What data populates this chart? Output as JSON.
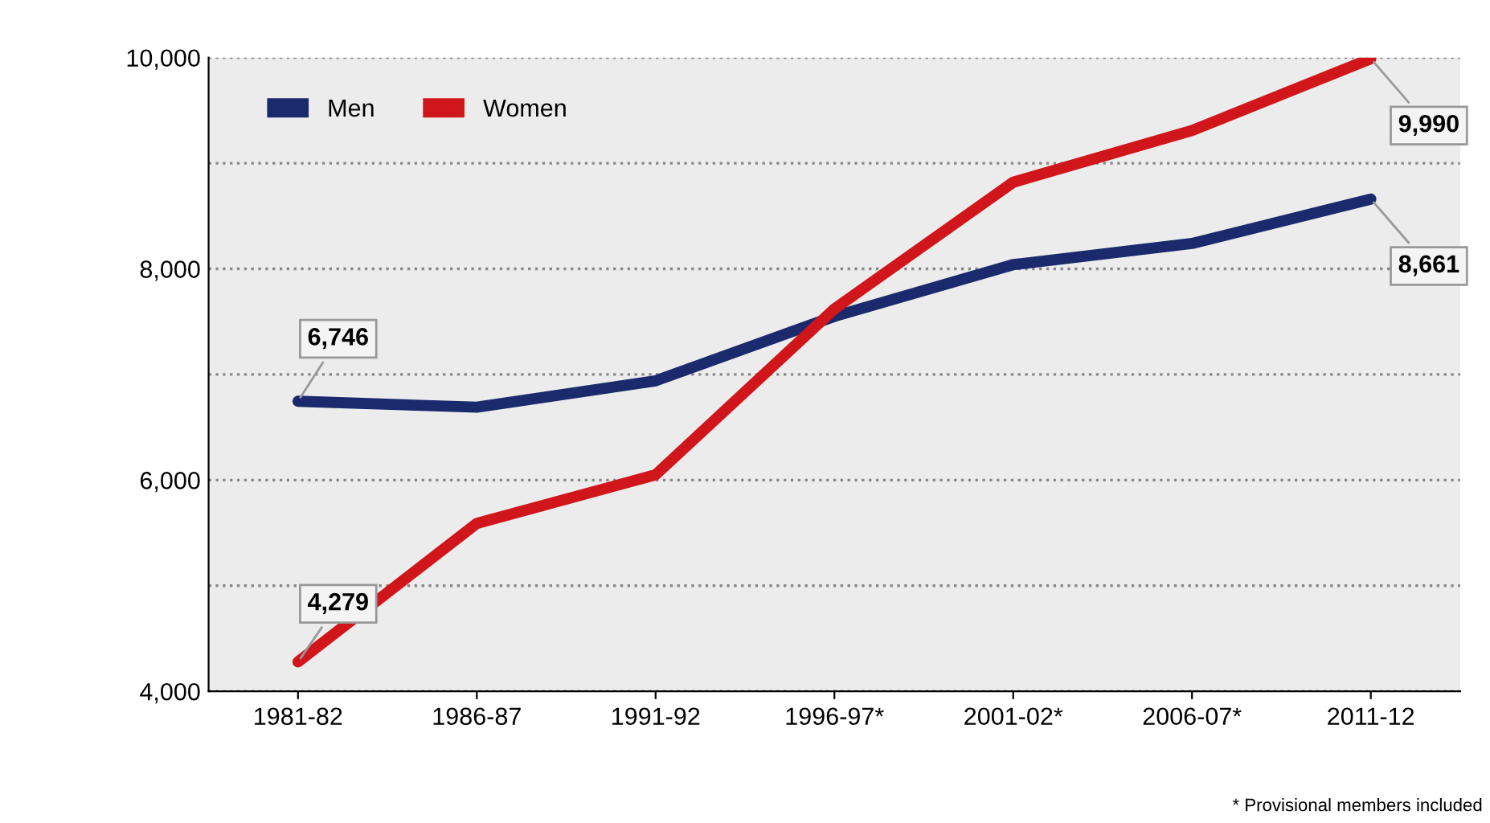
{
  "chart_data": {
    "type": "line",
    "categories": [
      "1981-82",
      "1986-87",
      "1991-92",
      "1996-97*",
      "2001-02*",
      "2006-07*",
      "2011-12"
    ],
    "series": [
      {
        "name": "Men",
        "color": "#1a2a6c",
        "values": [
          6746,
          6690,
          6940,
          7550,
          8040,
          8240,
          8661
        ],
        "value_labels": [
          "6,746",
          null,
          null,
          null,
          null,
          null,
          "8,661"
        ]
      },
      {
        "name": "Women",
        "color": "#d0161b",
        "values": [
          4279,
          5590,
          6050,
          7620,
          8820,
          9310,
          9990
        ],
        "value_labels": [
          "4,279",
          null,
          null,
          null,
          null,
          null,
          "9,990"
        ]
      }
    ],
    "ylim": [
      4000,
      10000
    ],
    "yticks": [
      {
        "value": 4000,
        "label": "4,000"
      },
      {
        "value": 5000,
        "label": null
      },
      {
        "value": 6000,
        "label": "6,000"
      },
      {
        "value": 7000,
        "label": null
      },
      {
        "value": 8000,
        "label": "8,000"
      },
      {
        "value": 9000,
        "label": null
      },
      {
        "value": 10000,
        "label": "10,000"
      }
    ],
    "grid": "y",
    "legend": "top left",
    "marker": "none",
    "line_style": "solid",
    "annotations": [
      "* Provisional members included"
    ]
  }
}
